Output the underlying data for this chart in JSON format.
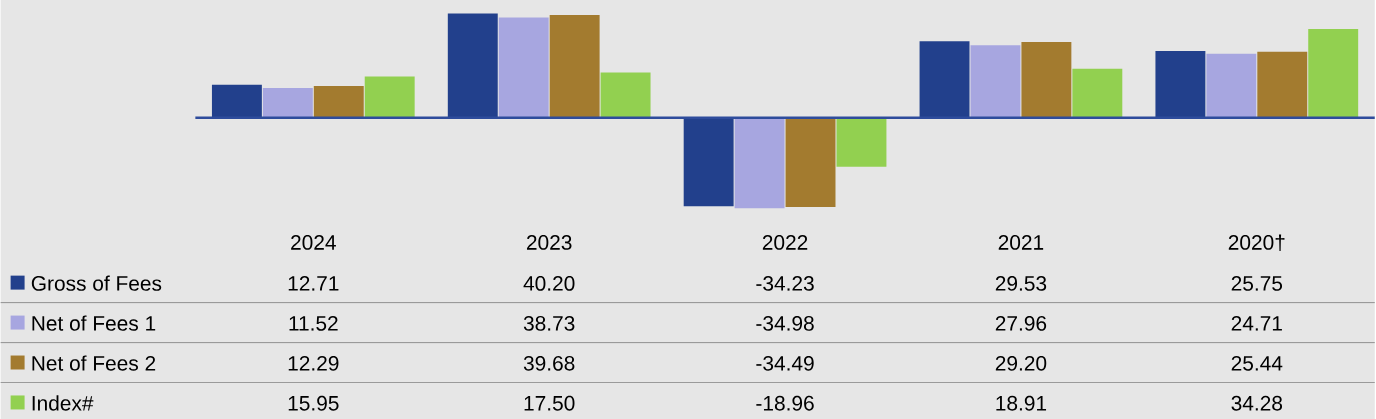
{
  "chart_data": {
    "type": "bar",
    "categories": [
      "2024",
      "2023",
      "2022",
      "2021",
      "2020†"
    ],
    "legend": "bottom left",
    "ref_lines": [
      {
        "axis": "y",
        "value": 0,
        "color": "#2e4c9c"
      }
    ],
    "series": [
      {
        "name": "Gross of Fees",
        "color": "#22408c",
        "values": [
          12.71,
          40.2,
          -34.23,
          29.53,
          25.75
        ],
        "value_labels": [
          "12.71",
          "40.20",
          "-34.23",
          "29.53",
          "25.75"
        ]
      },
      {
        "name": "Net of Fees 1",
        "color": "#a7a6e0",
        "values": [
          11.52,
          38.73,
          -34.98,
          27.96,
          24.71
        ],
        "value_labels": [
          "11.52",
          "38.73",
          "-34.98",
          "27.96",
          "24.71"
        ]
      },
      {
        "name": "Net of Fees 2",
        "color": "#a37b2f",
        "values": [
          12.29,
          39.68,
          -34.49,
          29.2,
          25.44
        ],
        "value_labels": [
          "12.29",
          "39.68",
          "-34.49",
          "29.20",
          "25.44"
        ]
      },
      {
        "name": "Index#",
        "color": "#92d050",
        "values": [
          15.95,
          17.5,
          -18.96,
          18.91,
          34.28
        ],
        "value_labels": [
          "15.95",
          "17.50",
          "-18.96",
          "18.91",
          "34.28"
        ]
      }
    ]
  }
}
